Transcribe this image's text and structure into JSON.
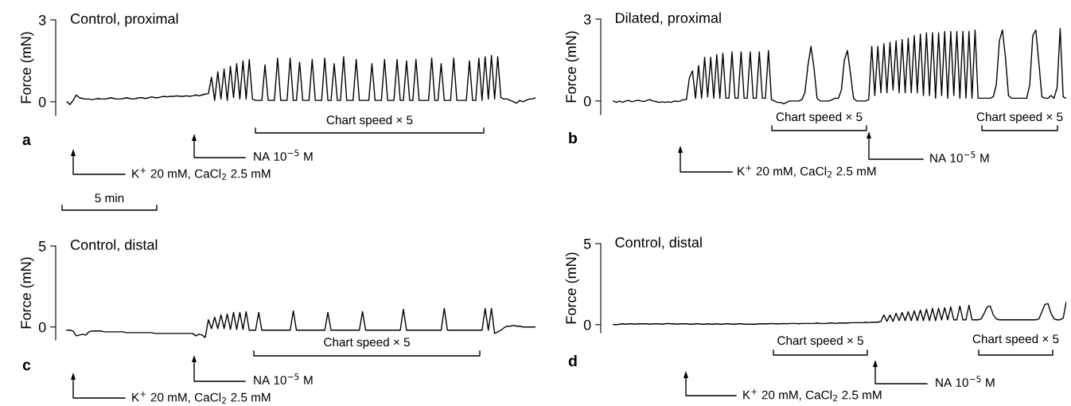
{
  "chart_data": [
    {
      "type": "line",
      "title": "Control, proximal",
      "ylabel": "Force (mN)",
      "color": "#000000",
      "ylim": [
        -0.5,
        3
      ],
      "yticks": [
        0,
        3
      ],
      "tick_labels": "y",
      "grid": false,
      "annotations": [
        "a",
        "Chart speed × 5",
        "NA 10$^{−5}$ M",
        "K$^{+}$ 20 mM, CaCl$_{2}$ 2.5 mM",
        "5 min"
      ],
      "categories": [
        null,
        null,
        null,
        null,
        null,
        null,
        null,
        null,
        null,
        null,
        null,
        null,
        null,
        null,
        null,
        null,
        null,
        null,
        null,
        null,
        null,
        null,
        null,
        null,
        null,
        null,
        null,
        null,
        null,
        null,
        null,
        null,
        null,
        null,
        null,
        null,
        null,
        null,
        null,
        null,
        null,
        null,
        null,
        null,
        null,
        null,
        null,
        null,
        null,
        null,
        null,
        null,
        null,
        null,
        null,
        null,
        null,
        null,
        null,
        null,
        null,
        null,
        null,
        null,
        null,
        null,
        null,
        null,
        null,
        null,
        null,
        null,
        null,
        null,
        null,
        null,
        null,
        null,
        null,
        null,
        null,
        null,
        null,
        null,
        null,
        null,
        null,
        null,
        null,
        null,
        null,
        null,
        null,
        null,
        null,
        null,
        null,
        null,
        null,
        null,
        null,
        null,
        null,
        null,
        null,
        null,
        null,
        null,
        null,
        null,
        null,
        null,
        null,
        null,
        null,
        null,
        null,
        null,
        null,
        null,
        null,
        null,
        null,
        null,
        null,
        null,
        null,
        null,
        null,
        null,
        null,
        null,
        null,
        null,
        null,
        null,
        null,
        null,
        null,
        null,
        null,
        null,
        null,
        null,
        null,
        null,
        null,
        null,
        null,
        null
      ],
      "values": [
        0,
        -0.1,
        0.05,
        0.25,
        0.15,
        0.12,
        0.1,
        0.1,
        0.08,
        0.1,
        0.12,
        0.1,
        0.1,
        0.12,
        0.15,
        0.12,
        0.1,
        0.1,
        0.12,
        0.15,
        0.12,
        0.1,
        0.12,
        0.15,
        0.15,
        0.12,
        0.15,
        0.18,
        0.15,
        0.15,
        0.18,
        0.2,
        0.18,
        0.2,
        0.2,
        0.22,
        0.2,
        0.2,
        0.22,
        0.2,
        0.22,
        0.25,
        0.22,
        0.25,
        0.28,
        0.3,
        0.9,
        0.05,
        1.1,
        0.1,
        1.2,
        0.05,
        1.3,
        0.15,
        1.4,
        0.1,
        1.5,
        0.1,
        1.55,
        0.1,
        0.05,
        0.05,
        0.05,
        1.35,
        0.05,
        0.05,
        0.05,
        1.6,
        0.05,
        0.05,
        0.05,
        1.6,
        0.05,
        0.05,
        1.45,
        0.05,
        0.05,
        0.05,
        1.55,
        0.05,
        0.05,
        0.05,
        1.6,
        0.05,
        0.05,
        1.4,
        0.05,
        0.05,
        1.65,
        0.05,
        0.05,
        0.05,
        1.55,
        0.05,
        0.05,
        0.05,
        0.05,
        1.4,
        0.05,
        0.05,
        0.05,
        1.55,
        0.05,
        0.05,
        0.05,
        1.55,
        0.05,
        0.05,
        1.5,
        0.05,
        0.05,
        1.55,
        0.05,
        0.05,
        0.05,
        0.05,
        1.6,
        0.05,
        0.05,
        1.4,
        0.05,
        0.05,
        0.05,
        1.6,
        0.05,
        0.05,
        0.05,
        0.05,
        1.5,
        0.05,
        0.05,
        1.6,
        0.05,
        1.65,
        0.1,
        1.7,
        0.1,
        1.65,
        0.15,
        0.1,
        0.1,
        0.05,
        0,
        -0.05,
        0.05,
        0,
        0.05,
        0.1,
        0.1,
        0.15
      ]
    },
    {
      "type": "line",
      "title": "Dilated, proximal",
      "ylabel": "Force (mN)",
      "color": "#000000",
      "ylim": [
        -0.5,
        3
      ],
      "yticks": [
        0,
        3
      ],
      "tick_labels": "y",
      "grid": false,
      "annotations": [
        "b",
        "Chart speed × 5",
        "Chart speed × 5",
        "NA 10$^{−5}$ M",
        "K$^{+}$ 20 mM, CaCl$_{2}$ 2.5 mM"
      ],
      "categories": [
        null,
        null,
        null,
        null,
        null,
        null,
        null,
        null,
        null,
        null,
        null,
        null,
        null,
        null,
        null,
        null,
        null,
        null,
        null,
        null,
        null,
        null,
        null,
        null,
        null,
        null,
        null,
        null,
        null,
        null,
        null,
        null,
        null,
        null,
        null,
        null,
        null,
        null,
        null,
        null,
        null,
        null,
        null,
        null,
        null,
        null,
        null,
        null,
        null,
        null,
        null,
        null,
        null,
        null,
        null,
        null,
        null,
        null,
        null,
        null,
        null,
        null,
        null,
        null,
        null,
        null,
        null,
        null,
        null,
        null,
        null,
        null,
        null,
        null,
        null,
        null,
        null,
        null,
        null,
        null,
        null,
        null,
        null,
        null,
        null,
        null,
        null,
        null,
        null,
        null,
        null,
        null,
        null,
        null,
        null,
        null,
        null,
        null,
        null,
        null,
        null,
        null,
        null,
        null,
        null,
        null,
        null,
        null,
        null,
        null,
        null,
        null,
        null,
        null,
        null,
        null,
        null,
        null,
        null,
        null,
        null,
        null,
        null,
        null,
        null,
        null,
        null,
        null,
        null,
        null,
        null,
        null,
        null,
        null,
        null,
        null,
        null,
        null,
        null,
        null,
        null,
        null,
        null,
        null,
        null,
        null,
        null,
        null,
        null,
        null
      ],
      "values": [
        0,
        -0.05,
        0,
        -0.05,
        0,
        0.02,
        -0.03,
        0,
        0.03,
        0,
        -0.02,
        0.02,
        0.05,
        0,
        -0.02,
        -0.05,
        -0.03,
        -0.05,
        -0.03,
        -0.05,
        0,
        -0.02,
        0,
        0.05,
        0.05,
        0.85,
        1.1,
        0.1,
        1.3,
        0.1,
        1.6,
        0.15,
        1.6,
        0.1,
        1.7,
        0.1,
        1.75,
        0.1,
        0.1,
        1.8,
        0.1,
        0.1,
        1.8,
        0.1,
        0.1,
        1.8,
        0.1,
        0.1,
        1.8,
        0.1,
        0.1,
        1.85,
        0.05,
        0,
        -0.05,
        -0.05,
        -0.1,
        -0.05,
        0,
        0,
        0,
        0,
        0.05,
        0.3,
        1.3,
        2.0,
        1.2,
        0.1,
        0,
        0,
        0,
        0,
        0.05,
        0.1,
        0.1,
        0.4,
        1.5,
        1.85,
        1.0,
        0.1,
        0,
        0,
        0,
        0,
        0.05,
        2.0,
        0.2,
        2.0,
        0.3,
        2.1,
        0.3,
        2.15,
        0.4,
        2.2,
        0.3,
        2.25,
        0.3,
        2.3,
        0.3,
        2.4,
        0.3,
        2.45,
        0.2,
        2.5,
        0.2,
        2.5,
        0.1,
        2.5,
        0.2,
        2.55,
        0.1,
        2.55,
        0.2,
        2.55,
        0.1,
        2.55,
        0.1,
        2.55,
        0.1,
        2.6,
        0.1,
        0.1,
        0.1,
        0.1,
        0.1,
        0.15,
        0.6,
        2.2,
        2.6,
        1.6,
        0.2,
        0.1,
        0.1,
        0.1,
        0.1,
        0.1,
        0.1,
        0.6,
        2.4,
        2.6,
        1.4,
        0.15,
        0.1,
        0.1,
        0.2,
        0.1,
        0.5,
        2.65,
        0.15,
        0.1
      ]
    },
    {
      "type": "line",
      "title": "Control, distal",
      "ylabel": "Force (mN)",
      "color": "#000000",
      "ylim": [
        -0.8,
        5
      ],
      "yticks": [
        0,
        5
      ],
      "tick_labels": "y",
      "grid": false,
      "annotations": [
        "c",
        "Chart speed × 5",
        "NA 10$^{−5}$ M",
        "K$^{+}$ 20 mM, CaCl$_{2}$ 2.5 mM"
      ],
      "categories": [
        null,
        null,
        null,
        null,
        null,
        null,
        null,
        null,
        null,
        null,
        null,
        null,
        null,
        null,
        null,
        null,
        null,
        null,
        null,
        null,
        null,
        null,
        null,
        null,
        null,
        null,
        null,
        null,
        null,
        null,
        null,
        null,
        null,
        null,
        null,
        null,
        null,
        null,
        null,
        null,
        null,
        null,
        null,
        null,
        null,
        null,
        null,
        null,
        null,
        null,
        null,
        null,
        null,
        null,
        null,
        null,
        null,
        null,
        null,
        null,
        null,
        null,
        null,
        null,
        null,
        null,
        null,
        null,
        null,
        null,
        null,
        null,
        null,
        null,
        null,
        null,
        null,
        null,
        null,
        null,
        null,
        null,
        null,
        null,
        null,
        null,
        null,
        null,
        null,
        null,
        null,
        null,
        null,
        null,
        null,
        null,
        null,
        null,
        null,
        null,
        null,
        null,
        null,
        null,
        null,
        null,
        null,
        null,
        null,
        null,
        null,
        null,
        null,
        null,
        null,
        null,
        null,
        null,
        null,
        null,
        null,
        null,
        null,
        null,
        null,
        null,
        null,
        null,
        null,
        null,
        null,
        null,
        null,
        null,
        null,
        null,
        null,
        null,
        null,
        null,
        null,
        null,
        null,
        null,
        null,
        null,
        null,
        null,
        null,
        null
      ],
      "values": [
        -0.2,
        -0.2,
        -0.25,
        -0.55,
        -0.5,
        -0.45,
        -0.5,
        -0.3,
        -0.25,
        -0.25,
        -0.25,
        -0.25,
        -0.3,
        -0.3,
        -0.3,
        -0.3,
        -0.3,
        -0.3,
        -0.3,
        -0.35,
        -0.35,
        -0.35,
        -0.35,
        -0.35,
        -0.35,
        -0.35,
        -0.35,
        -0.35,
        -0.4,
        -0.4,
        -0.4,
        -0.4,
        -0.4,
        -0.4,
        -0.4,
        -0.4,
        -0.4,
        -0.4,
        -0.4,
        -0.4,
        -0.4,
        -0.55,
        -0.45,
        -0.5,
        -0.65,
        0.45,
        -0.1,
        0.6,
        -0.1,
        0.75,
        -0.1,
        0.8,
        -0.15,
        0.9,
        -0.15,
        0.9,
        -0.15,
        0.95,
        -0.2,
        -0.2,
        -0.2,
        0.9,
        -0.2,
        -0.2,
        -0.2,
        -0.2,
        -0.2,
        -0.2,
        -0.2,
        -0.2,
        -0.2,
        -0.2,
        1.0,
        -0.2,
        -0.2,
        -0.2,
        -0.2,
        -0.2,
        -0.2,
        -0.2,
        -0.2,
        -0.2,
        -0.2,
        0.9,
        -0.2,
        -0.2,
        -0.2,
        -0.2,
        -0.2,
        -0.2,
        -0.2,
        -0.2,
        -0.2,
        -0.2,
        0.95,
        -0.2,
        -0.2,
        -0.2,
        -0.2,
        -0.2,
        -0.2,
        -0.2,
        -0.2,
        -0.2,
        -0.2,
        -0.2,
        -0.2,
        1.1,
        -0.2,
        -0.2,
        -0.2,
        -0.2,
        -0.2,
        -0.2,
        -0.2,
        -0.2,
        -0.2,
        -0.2,
        -0.2,
        -0.2,
        1.15,
        -0.2,
        -0.2,
        -0.2,
        -0.2,
        -0.2,
        -0.2,
        -0.2,
        -0.2,
        -0.2,
        -0.2,
        -0.2,
        -0.2,
        1.15,
        -0.2,
        1.15,
        -0.4,
        -0.3,
        -0.2,
        -0.05,
        0.05,
        0.05,
        0.1,
        0.05,
        0.05,
        0,
        0,
        0,
        0,
        0
      ]
    },
    {
      "type": "line",
      "title": "Control, distal",
      "ylabel": "Force (mN)",
      "color": "#000000",
      "ylim": [
        -0.5,
        5
      ],
      "yticks": [
        0,
        5
      ],
      "tick_labels": "y",
      "grid": false,
      "annotations": [
        "d",
        "Chart speed × 5",
        "Chart speed × 5",
        "NA 10$^{−5}$ M",
        "K$^{+}$ 20 mM, CaCl$_{2}$ 2.5 mM"
      ],
      "categories": [
        null,
        null,
        null,
        null,
        null,
        null,
        null,
        null,
        null,
        null,
        null,
        null,
        null,
        null,
        null,
        null,
        null,
        null,
        null,
        null,
        null,
        null,
        null,
        null,
        null,
        null,
        null,
        null,
        null,
        null,
        null,
        null,
        null,
        null,
        null,
        null,
        null,
        null,
        null,
        null,
        null,
        null,
        null,
        null,
        null,
        null,
        null,
        null,
        null,
        null,
        null,
        null,
        null,
        null,
        null,
        null,
        null,
        null,
        null,
        null,
        null,
        null,
        null,
        null,
        null,
        null,
        null,
        null,
        null,
        null,
        null,
        null,
        null,
        null,
        null,
        null,
        null,
        null,
        null,
        null,
        null,
        null,
        null,
        null,
        null,
        null,
        null,
        null,
        null,
        null,
        null,
        null,
        null,
        null,
        null,
        null,
        null,
        null,
        null,
        null,
        null,
        null,
        null,
        null,
        null,
        null,
        null,
        null,
        null,
        null,
        null,
        null,
        null,
        null,
        null,
        null,
        null,
        null,
        null,
        null,
        null,
        null,
        null,
        null,
        null,
        null,
        null,
        null,
        null,
        null,
        null,
        null,
        null,
        null,
        null,
        null,
        null,
        null,
        null,
        null,
        null,
        null,
        null,
        null,
        null,
        null,
        null,
        null,
        null,
        null
      ],
      "values": [
        0,
        0,
        0.03,
        0.05,
        0.03,
        0.05,
        0.05,
        0.03,
        0.05,
        0.05,
        0.05,
        0.05,
        0.03,
        0.05,
        0.05,
        0.05,
        0.03,
        0.05,
        0.07,
        0.05,
        0.05,
        0.03,
        0.05,
        0.05,
        0.05,
        0.03,
        0.03,
        0.05,
        0.05,
        0.03,
        0.03,
        0.05,
        0.03,
        0.03,
        0.05,
        0.03,
        0.03,
        0.05,
        0.05,
        0.03,
        0.03,
        0.05,
        0.05,
        0.03,
        0.03,
        0.03,
        0.03,
        0.03,
        0.05,
        0.05,
        0.05,
        0.05,
        0.07,
        0.05,
        0.05,
        0.05,
        0.07,
        0.05,
        0.07,
        0.07,
        0.07,
        0.05,
        0.07,
        0.07,
        0.07,
        0.07,
        0.07,
        0.1,
        0.07,
        0.07,
        0.07,
        0.1,
        0.1,
        0.07,
        0.1,
        0.1,
        0.1,
        0.1,
        0.12,
        0.12,
        0.12,
        0.12,
        0.12,
        0.15,
        0.12,
        0.15,
        0.15,
        0.15,
        0.2,
        0.6,
        0.2,
        0.6,
        0.2,
        0.7,
        0.25,
        0.75,
        0.25,
        0.8,
        0.25,
        0.85,
        0.25,
        0.9,
        0.25,
        0.95,
        0.25,
        1.0,
        0.25,
        1.0,
        0.3,
        1.05,
        0.3,
        1.1,
        0.3,
        0.3,
        1.15,
        0.3,
        0.3,
        1.2,
        0.3,
        0.3,
        0.3,
        0.35,
        0.7,
        1.1,
        1.15,
        0.6,
        0.35,
        0.3,
        0.3,
        0.3,
        0.3,
        0.3,
        0.3,
        0.3,
        0.3,
        0.3,
        0.3,
        0.3,
        0.3,
        0.3,
        0.35,
        0.8,
        1.25,
        1.3,
        0.7,
        0.35,
        0.3,
        0.3,
        0.4,
        1.4
      ]
    }
  ]
}
